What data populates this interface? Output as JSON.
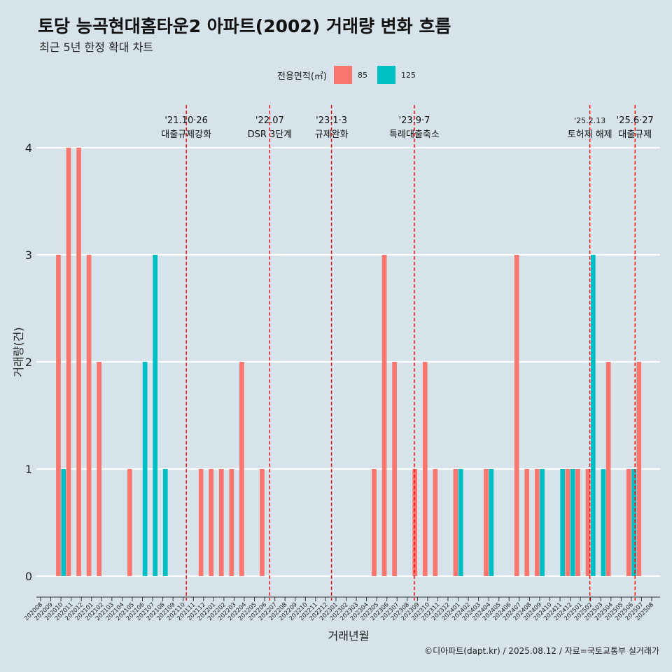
{
  "header": {
    "title": "토당 능곡현대홈타운2 아파트(2002) 거래량 변화 흐름",
    "subtitle": "최근 5년 한정 확대 차트"
  },
  "legend": {
    "title": "전용면적(㎡)",
    "items": [
      {
        "label": "85",
        "color": "#f8766d"
      },
      {
        "label": "125",
        "color": "#00bfc4"
      }
    ]
  },
  "caption": "©디아파트(dapt.kr) / 2025.08.12 / 자료=국토교통부 실거래가",
  "chart_data": {
    "type": "bar",
    "xlabel": "거래년월",
    "ylabel": "거래량(건)",
    "ylim": [
      0,
      4
    ],
    "yticks": [
      0,
      1,
      2,
      3,
      4
    ],
    "categories": [
      "202008",
      "202009",
      "202010",
      "202011",
      "202012",
      "202101",
      "202102",
      "202103",
      "202104",
      "202105",
      "202106",
      "202107",
      "202108",
      "202109",
      "202110",
      "202111",
      "202112",
      "202201",
      "202202",
      "202203",
      "202204",
      "202205",
      "202206",
      "202207",
      "202208",
      "202209",
      "202210",
      "202211",
      "202212",
      "202301",
      "202302",
      "202303",
      "202304",
      "202305",
      "202306",
      "202307",
      "202308",
      "202309",
      "202310",
      "202311",
      "202312",
      "202401",
      "202402",
      "202403",
      "202404",
      "202405",
      "202406",
      "202407",
      "202408",
      "202409",
      "202410",
      "202411",
      "202412",
      "202501",
      "202502",
      "202503",
      "202504",
      "202505",
      "202506",
      "202507",
      "202508"
    ],
    "series": [
      {
        "name": "85",
        "color": "#f8766d",
        "values": [
          0,
          0,
          3,
          4,
          4,
          3,
          2,
          0,
          0,
          1,
          0,
          0,
          0,
          0,
          0,
          0,
          1,
          1,
          1,
          1,
          2,
          0,
          1,
          0,
          0,
          0,
          0,
          0,
          0,
          0,
          0,
          0,
          0,
          1,
          3,
          2,
          0,
          1,
          2,
          1,
          0,
          1,
          0,
          0,
          1,
          0,
          0,
          3,
          1,
          1,
          0,
          0,
          1,
          1,
          1,
          0,
          2,
          0,
          1,
          2,
          0
        ]
      },
      {
        "name": "125",
        "color": "#00bfc4",
        "values": [
          0,
          0,
          1,
          0,
          0,
          0,
          0,
          0,
          0,
          0,
          2,
          3,
          1,
          0,
          0,
          0,
          0,
          0,
          0,
          0,
          0,
          0,
          0,
          0,
          0,
          0,
          0,
          0,
          0,
          0,
          0,
          0,
          0,
          0,
          0,
          0,
          0,
          0,
          0,
          0,
          0,
          1,
          0,
          0,
          1,
          0,
          0,
          0,
          0,
          1,
          0,
          1,
          1,
          0,
          3,
          1,
          0,
          0,
          1,
          0,
          0
        ]
      }
    ],
    "annotations": [
      {
        "date": "2021-10-26",
        "line1": "'21.10·26",
        "line2": "대출규제강화"
      },
      {
        "date": "2022-07-01",
        "line1": "'22.07",
        "line2": "DSR 3단계"
      },
      {
        "date": "2023-01-03",
        "line1": "'23.1·3",
        "line2": "규제완화"
      },
      {
        "date": "2023-09-07",
        "line1": "'23.9·7",
        "line2": "특례대출축소"
      },
      {
        "date": "2025-02-13",
        "line1": "'25.2.13",
        "line2": "토허제 해제"
      },
      {
        "date": "2025-06-27",
        "line1": "'25.6·27",
        "line2": "대출규제"
      }
    ]
  }
}
